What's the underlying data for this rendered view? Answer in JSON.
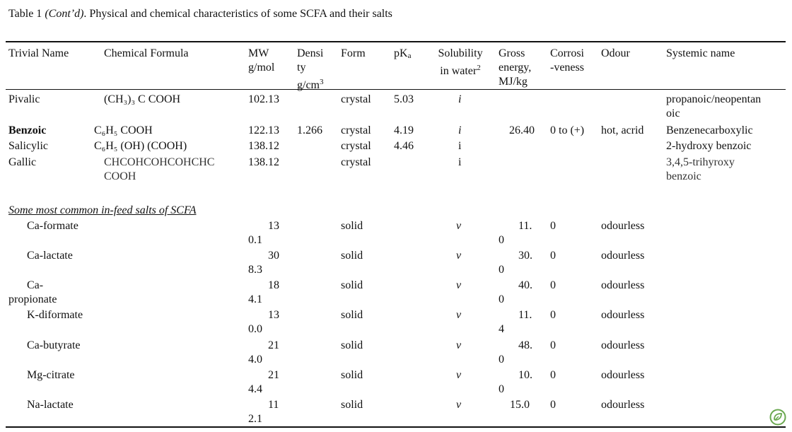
{
  "caption": {
    "prefix": "Table 1 ",
    "cont": "(Cont’d)",
    "rest": ". Physical and chemical characteristics of some SCFA and their salts"
  },
  "headers": {
    "trivial": "Trivial Name",
    "formula": "Chemical Formula",
    "mw_1": "MW",
    "mw_2": "g/mol",
    "density_1": "Densi",
    "density_2": "ty",
    "density_3": "g/cm",
    "density_sup": "3",
    "form": "Form",
    "pka": "pK",
    "pka_sub": "a",
    "solubility_1": "Solubility",
    "solubility_2": "in water",
    "solubility_sup": "2",
    "gross_1": "Gross",
    "gross_2": "energy,",
    "gross_3": "MJ/kg",
    "corros_1": "Corrosi",
    "corros_2": "-veness",
    "odour": "Odour",
    "systemic": "Systemic name"
  },
  "acids": [
    {
      "name": "Pivalic",
      "formula": "(CH₃)₃ C COOH",
      "mw": "102.13",
      "density": "",
      "form": "crystal",
      "pka": "5.03",
      "sol": "i",
      "energy": "",
      "corr": "",
      "odour": "",
      "sys_1": "propanoic/neopentan",
      "sys_2": "oic"
    },
    {
      "name": "Benzoic",
      "formula": "C₆H₅ COOH",
      "mw": "122.13",
      "density": "1.266",
      "form": "crystal",
      "pka": "4.19",
      "sol": "i",
      "energy": "26.40",
      "corr": "0 to (+)",
      "odour": "hot, acrid",
      "sys_1": "Benzenecarboxylic",
      "sys_2": ""
    },
    {
      "name": "Salicylic",
      "formula": "C₆H₅ (OH) (COOH)",
      "mw": "138.12",
      "density": "",
      "form": "crystal",
      "pka": "4.46",
      "sol": "i",
      "energy": "",
      "corr": "",
      "odour": "",
      "sys_1": "2-hydroxy benzoic",
      "sys_2": ""
    },
    {
      "name": "Gallic",
      "formula_1": "CHCOHCOHCOHCHC",
      "formula_2": "COOH",
      "mw": "138.12",
      "density": "",
      "form": "crystal",
      "pka": "",
      "sol": "i",
      "energy": "",
      "corr": "",
      "odour": "",
      "sys_1": "3,4,5-trihyroxy",
      "sys_2": "benzoic"
    }
  ],
  "salts_title": "Some most common in-feed  salts of SCFA",
  "salts": [
    {
      "name_1": "Ca-formate",
      "name_2": "",
      "mw_1": "13",
      "mw_2": "0.1",
      "form": "solid",
      "sol": "v",
      "en_1": "11.",
      "en_2": "0",
      "corr": "0",
      "odour": "odourless"
    },
    {
      "name_1": "Ca-lactate",
      "name_2": "",
      "mw_1": "30",
      "mw_2": "8.3",
      "form": "solid",
      "sol": "v",
      "en_1": "30.",
      "en_2": "0",
      "corr": "0",
      "odour": "odourless"
    },
    {
      "name_1": "Ca-",
      "name_2": "propionate",
      "mw_1": "18",
      "mw_2": "4.1",
      "form": "solid",
      "sol": "v",
      "en_1": "40.",
      "en_2": "0",
      "corr": "0",
      "odour": "odourless"
    },
    {
      "name_1": "K-diformate",
      "name_2": "",
      "mw_1": "13",
      "mw_2": "0.0",
      "form": "solid",
      "sol": "v",
      "en_1": "11.",
      "en_2": "4",
      "corr": "0",
      "odour": "odourless"
    },
    {
      "name_1": "Ca-butyrate",
      "name_2": "",
      "mw_1": "21",
      "mw_2": "4.0",
      "form": "solid",
      "sol": "v",
      "en_1": "48.",
      "en_2": "0",
      "corr": "0",
      "odour": "odourless"
    },
    {
      "name_1": "Mg-citrate",
      "name_2": "",
      "mw_1": "21",
      "mw_2": "4.4",
      "form": "solid",
      "sol": "v",
      "en_1": "10.",
      "en_2": "0",
      "corr": "0",
      "odour": "odourless"
    },
    {
      "name_1": "Na-lactate",
      "name_2": "",
      "mw_1": "11",
      "mw_2": "2.1",
      "form": "solid",
      "sol": "v",
      "en_1": "15.0",
      "en_2": "",
      "corr": "0",
      "odour": "odourless"
    }
  ],
  "icons": {
    "corner_logo": "leaf-badge-icon",
    "accent": "#6aa84f"
  }
}
